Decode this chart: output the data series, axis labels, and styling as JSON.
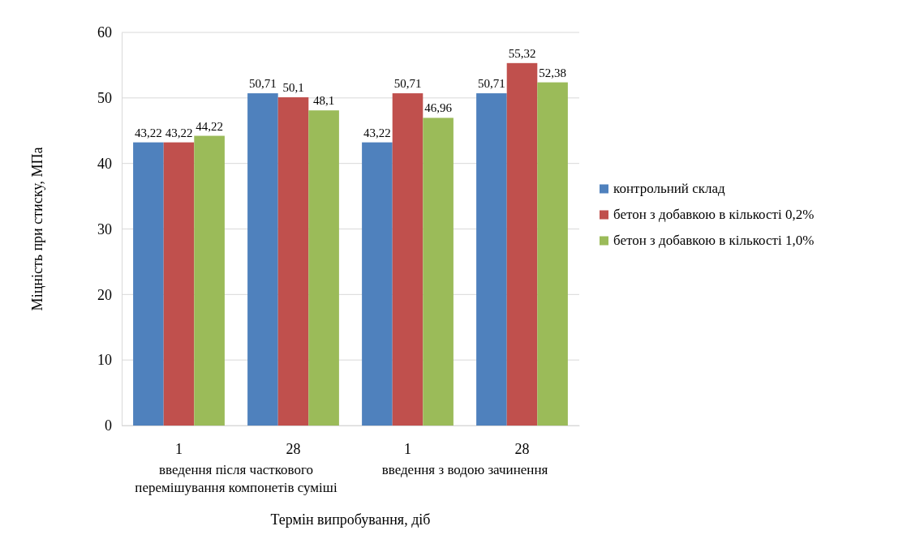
{
  "chart_data": {
    "type": "bar",
    "ylabel": "Міцність при стиску, МПа",
    "xlabel": "Термін випробування, діб",
    "categories": [
      "1",
      "28",
      "1",
      "28"
    ],
    "series": [
      {
        "name": "контрольний склад",
        "color": "#4f81bd",
        "values": [
          43.22,
          50.71,
          43.22,
          50.71
        ],
        "value_labels": [
          "43,22",
          "50,71",
          "43,22",
          "50,71"
        ]
      },
      {
        "name": "бетон з добавкою в кількості 0,2%",
        "color": "#c0504d",
        "values": [
          43.22,
          50.1,
          50.71,
          55.32
        ],
        "value_labels": [
          "43,22",
          "50,1",
          "50,71",
          "55,32"
        ]
      },
      {
        "name": "бетон з добавкою в кількості 1,0%",
        "color": "#9bbb59",
        "values": [
          44.22,
          48.1,
          46.96,
          52.38
        ],
        "value_labels": [
          "44,22",
          "48,1",
          "46,96",
          "52,38"
        ]
      }
    ],
    "annotations": [
      "введення після часткового перемішування компонетів суміші",
      "введення з водою зачинення"
    ],
    "ylim": [
      0,
      60
    ],
    "yticks": [
      0,
      10,
      20,
      30,
      40,
      50,
      60
    ],
    "grid": "y",
    "legend": "right"
  }
}
